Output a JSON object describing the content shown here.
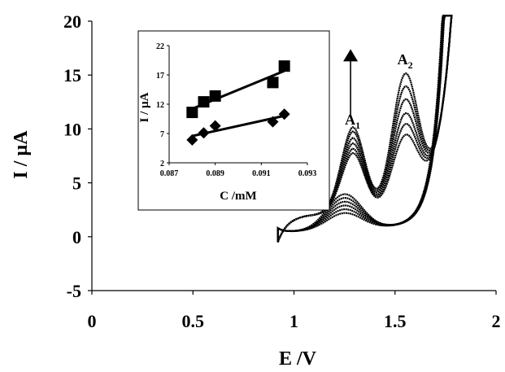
{
  "chart_data": [
    {
      "type": "line",
      "title": "",
      "xlabel": "E /V",
      "ylabel": "I / µA",
      "xlim": [
        0,
        2
      ],
      "ylim": [
        -5,
        20
      ],
      "x_ticks": [
        "0",
        "0.5",
        "1",
        "1.5",
        "2"
      ],
      "y_ticks": [
        "-5",
        "0",
        "5",
        "10",
        "15",
        "20"
      ],
      "annotations": [
        {
          "text": "A",
          "sub": "1",
          "x": 1.29,
          "y": 10.4
        },
        {
          "text": "A",
          "sub": "2",
          "x": 1.55,
          "y": 16.0
        }
      ],
      "arrow": {
        "x": 1.28,
        "y_from": 11.2,
        "y_to": 17.4,
        "direction": "up"
      },
      "series": [
        {
          "peak_a1": 5.6,
          "peak_a2": 10.5
        },
        {
          "peak_a1": 6.0,
          "peak_a2": 11.5
        },
        {
          "peak_a1": 6.5,
          "peak_a2": 12.5
        },
        {
          "peak_a1": 7.0,
          "peak_a2": 13.8
        },
        {
          "peak_a1": 7.6,
          "peak_a2": 15.0
        },
        {
          "peak_a1": 8.0,
          "peak_a2": 16.2
        }
      ],
      "scan_start": 0.92,
      "scan_end": 1.78
    },
    {
      "type": "scatter",
      "title": "",
      "xlabel": "C /mM",
      "ylabel": "I / µA",
      "xlim": [
        0.087,
        0.093
      ],
      "ylim": [
        2,
        22
      ],
      "x_ticks": [
        "0.087",
        "0.089",
        "0.091",
        "0.093"
      ],
      "y_ticks": [
        "2",
        "7",
        "12",
        "17",
        "22"
      ],
      "series": [
        {
          "marker": "square",
          "x": [
            0.088,
            0.0885,
            0.089,
            0.0915,
            0.092
          ],
          "y": [
            10.6,
            12.4,
            13.4,
            15.7,
            18.5
          ]
        },
        {
          "marker": "diamond",
          "x": [
            0.088,
            0.0885,
            0.089,
            0.0915,
            0.092
          ],
          "y": [
            5.9,
            7.1,
            8.3,
            9.0,
            10.3
          ]
        }
      ]
    }
  ]
}
